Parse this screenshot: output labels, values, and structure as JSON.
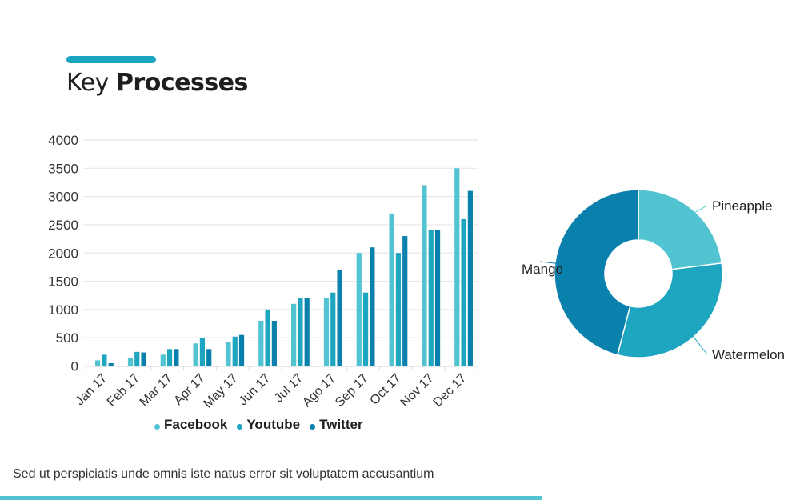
{
  "header": {
    "title_regular": "Key",
    "title_bold": "Processes",
    "accent_color": "#1aa4c0"
  },
  "footer": {
    "text": "Sed ut perspiciatis unde omnis iste natus error sit voluptatem accusantium",
    "bar_color": "#52c4d1"
  },
  "chart_data": [
    {
      "type": "bar",
      "title": "",
      "xlabel": "",
      "ylabel": "",
      "ylim": [
        0,
        4000
      ],
      "yticks": [
        "0",
        "500",
        "1000",
        "1500",
        "2000",
        "2500",
        "3000",
        "3500",
        "4000"
      ],
      "ytick_values": [
        0,
        500,
        1000,
        1500,
        2000,
        2500,
        3000,
        3500,
        4000
      ],
      "grid": true,
      "legend_position": "bottom",
      "categories": [
        "Jan 17",
        "Feb 17",
        "Mar 17",
        "Apr 17",
        "May 17",
        "Jun 17",
        "Jul 17",
        "Ago 17",
        "Sep 17",
        "Oct 17",
        "Nov 17",
        "Dec 17"
      ],
      "series": [
        {
          "name": "Facebook",
          "color": "#52c4d1",
          "values": [
            100,
            150,
            200,
            400,
            420,
            800,
            1100,
            1200,
            2000,
            2700,
            3200,
            3500
          ]
        },
        {
          "name": "Youtube",
          "color": "#1ea5c0",
          "values": [
            200,
            250,
            300,
            500,
            520,
            1000,
            1200,
            1300,
            1300,
            2000,
            2400,
            2600
          ]
        },
        {
          "name": "Twitter",
          "color": "#0a81ad",
          "values": [
            50,
            240,
            300,
            300,
            550,
            800,
            1200,
            1700,
            2100,
            2300,
            2400,
            3100
          ]
        }
      ]
    },
    {
      "type": "pie",
      "donut": true,
      "title": "",
      "labels": [
        "Pineapple",
        "Watermelon",
        "Mango"
      ],
      "values": [
        23,
        31,
        46
      ],
      "colors": [
        "#52c4d1",
        "#1ea5c0",
        "#0a81ad"
      ]
    }
  ]
}
